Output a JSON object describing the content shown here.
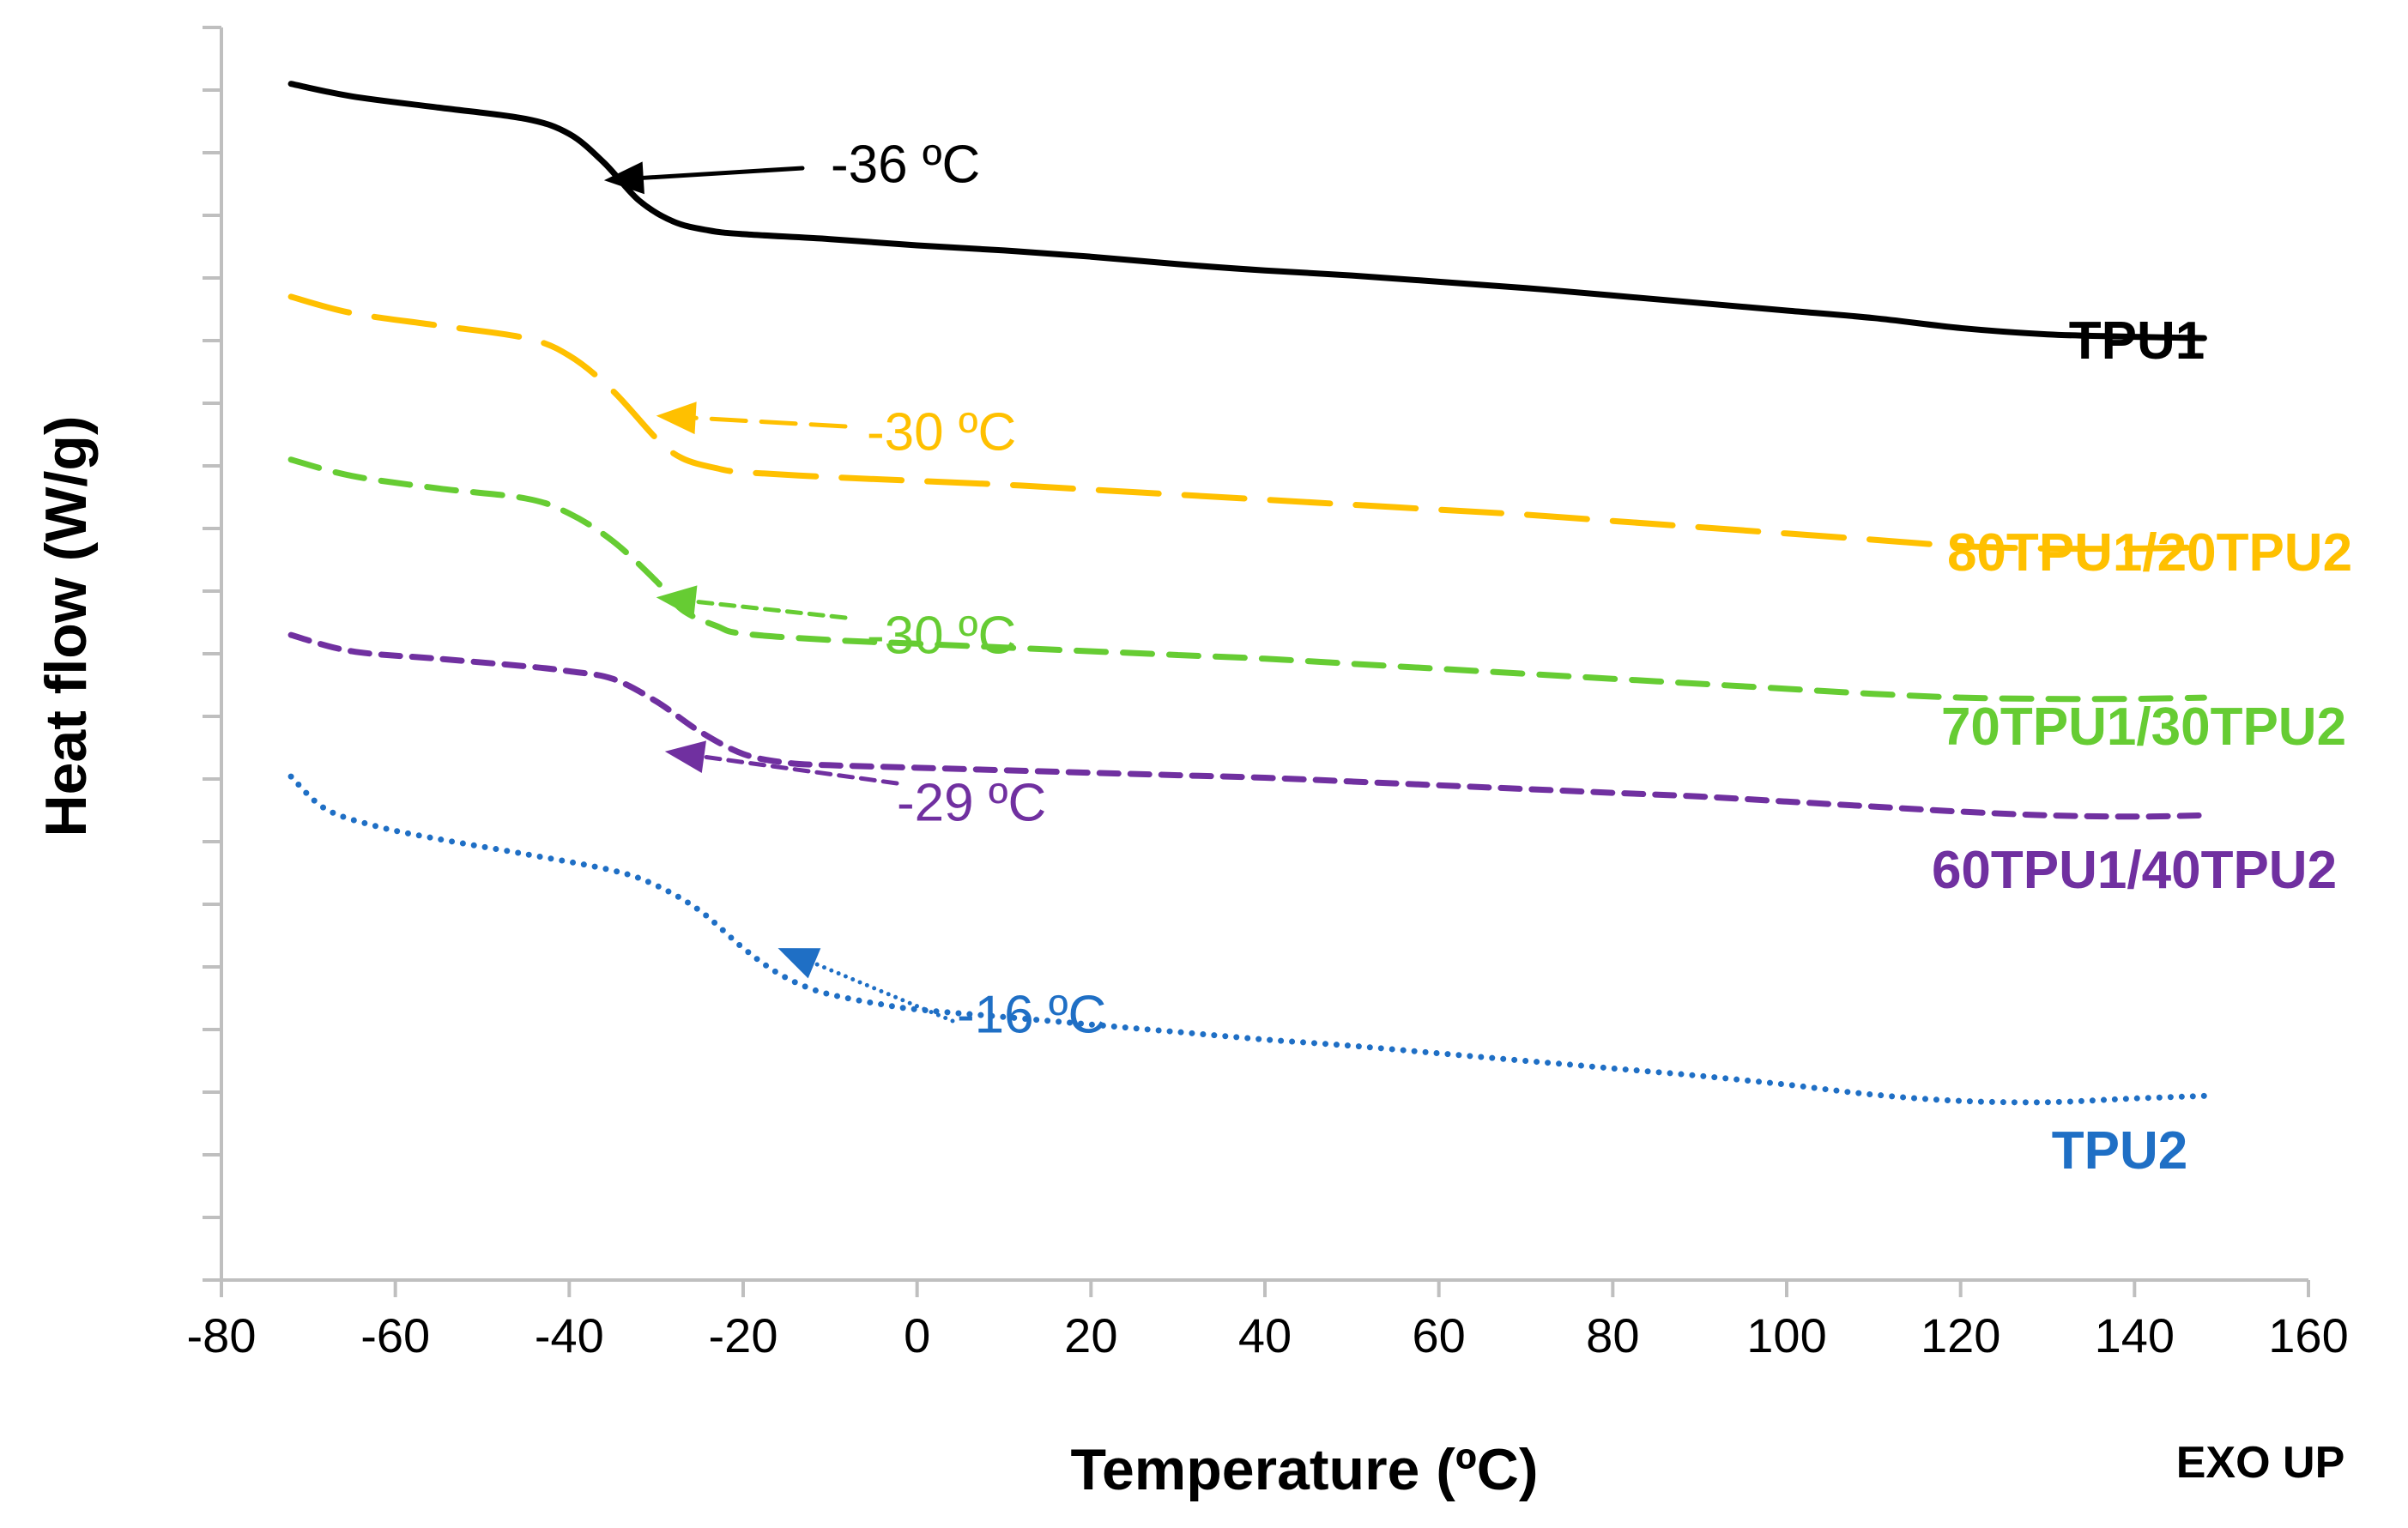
{
  "chart_data": {
    "type": "line",
    "title": "",
    "xlabel": "Temperature (ºC)",
    "ylabel": "Heat flow (W/g)",
    "note": "EXO UP",
    "xlim": [
      -80,
      160
    ],
    "xticks": [
      -80,
      -60,
      -40,
      -20,
      0,
      20,
      40,
      60,
      80,
      100,
      120,
      140,
      160
    ],
    "ylim": [
      0,
      10
    ],
    "grid": false,
    "legend": "inline labels at right end of each curve",
    "y_tick_labels": "none (minor tick marks only)",
    "series": [
      {
        "name": "TPU1",
        "color": "#000000",
        "dash": "solid",
        "x": [
          -72,
          -65,
          -55,
          -45,
          -40,
          -36,
          -32,
          -28,
          -24,
          -20,
          -10,
          0,
          10,
          20,
          30,
          40,
          50,
          60,
          70,
          80,
          90,
          100,
          110,
          120,
          130,
          140,
          148
        ],
        "y": [
          9.55,
          9.45,
          9.36,
          9.27,
          9.15,
          8.92,
          8.62,
          8.45,
          8.38,
          8.35,
          8.31,
          8.26,
          8.22,
          8.17,
          8.11,
          8.06,
          8.02,
          7.97,
          7.92,
          7.86,
          7.8,
          7.74,
          7.68,
          7.6,
          7.55,
          7.53,
          7.52
        ],
        "tg": {
          "x": -36,
          "y": 8.78,
          "label": "-36 ºC"
        }
      },
      {
        "name": "80TPU1/20TPU2",
        "color": "#FFC000",
        "dash": "long-dash",
        "x": [
          -72,
          -65,
          -55,
          -45,
          -40,
          -35,
          -30,
          -27,
          -23,
          -20,
          -10,
          0,
          10,
          20,
          30,
          40,
          50,
          60,
          70,
          80,
          90,
          100,
          110,
          120,
          130,
          140,
          148
        ],
        "y": [
          7.85,
          7.72,
          7.62,
          7.52,
          7.38,
          7.1,
          6.72,
          6.56,
          6.48,
          6.45,
          6.41,
          6.38,
          6.35,
          6.31,
          6.27,
          6.23,
          6.19,
          6.15,
          6.11,
          6.06,
          6.01,
          5.96,
          5.91,
          5.86,
          5.84,
          5.84,
          5.85
        ],
        "tg": {
          "x": -30,
          "y": 6.9,
          "label": "-30 ºC"
        }
      },
      {
        "name": "70TPU1/30TPU2",
        "color": "#66CC33",
        "dash": "dash",
        "x": [
          -72,
          -65,
          -55,
          -45,
          -40,
          -35,
          -30,
          -27,
          -23,
          -20,
          -10,
          0,
          10,
          20,
          30,
          40,
          50,
          60,
          70,
          80,
          90,
          100,
          110,
          120,
          130,
          140,
          148
        ],
        "y": [
          6.55,
          6.42,
          6.32,
          6.24,
          6.12,
          5.9,
          5.58,
          5.35,
          5.22,
          5.16,
          5.11,
          5.08,
          5.05,
          5.02,
          4.99,
          4.96,
          4.92,
          4.88,
          4.84,
          4.8,
          4.76,
          4.72,
          4.68,
          4.65,
          4.64,
          4.64,
          4.65
        ],
        "tg": {
          "x": -30,
          "y": 5.45,
          "label": "-30 ºC"
        }
      },
      {
        "name": "60TPU1/40TPU2",
        "color": "#7030A0",
        "dash": "short-dash",
        "x": [
          -72,
          -65,
          -55,
          -45,
          -40,
          -35,
          -30,
          -25,
          -20,
          -15,
          -10,
          0,
          10,
          20,
          30,
          40,
          50,
          60,
          70,
          80,
          90,
          100,
          110,
          120,
          130,
          140,
          148
        ],
        "y": [
          5.15,
          5.02,
          4.96,
          4.9,
          4.86,
          4.8,
          4.62,
          4.38,
          4.2,
          4.13,
          4.11,
          4.09,
          4.07,
          4.05,
          4.03,
          4.01,
          3.98,
          3.95,
          3.92,
          3.89,
          3.86,
          3.82,
          3.78,
          3.74,
          3.71,
          3.7,
          3.71
        ],
        "tg": {
          "x": -29,
          "y": 4.22,
          "label": "-29 ºC"
        }
      },
      {
        "name": "TPU2",
        "color": "#1F6FC5",
        "dash": "dotted",
        "x": [
          -72,
          -68,
          -62,
          -55,
          -45,
          -35,
          -30,
          -25,
          -20,
          -16,
          -12,
          -8,
          -4,
          0,
          10,
          20,
          30,
          40,
          50,
          60,
          70,
          80,
          90,
          100,
          110,
          120,
          130,
          140,
          148
        ],
        "y": [
          4.02,
          3.76,
          3.62,
          3.52,
          3.4,
          3.27,
          3.15,
          2.95,
          2.65,
          2.45,
          2.32,
          2.25,
          2.2,
          2.16,
          2.1,
          2.04,
          1.98,
          1.92,
          1.87,
          1.81,
          1.75,
          1.69,
          1.63,
          1.56,
          1.48,
          1.43,
          1.42,
          1.45,
          1.47
        ],
        "tg": {
          "x": -16,
          "y": 2.65,
          "label": "-16 ºC"
        }
      }
    ]
  }
}
